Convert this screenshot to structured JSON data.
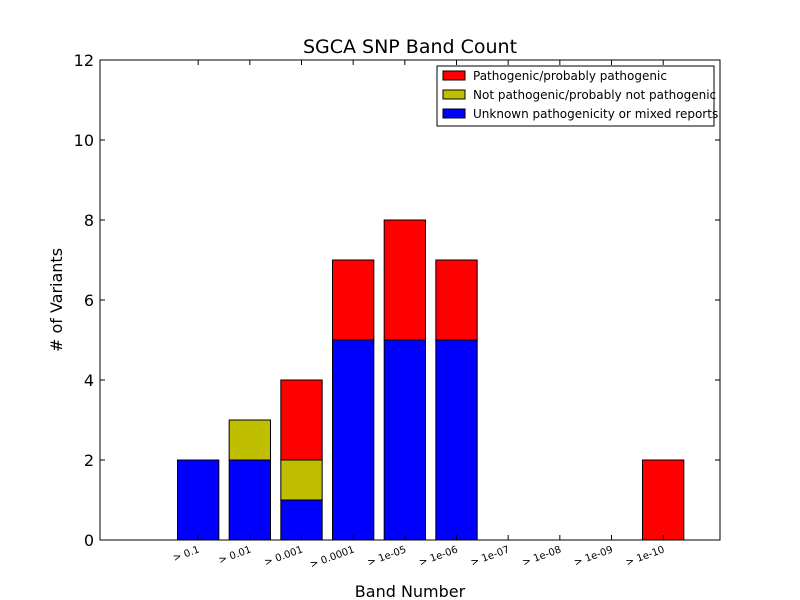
{
  "chart_data": {
    "type": "bar",
    "stacked": true,
    "title": "SGCA SNP Band Count",
    "xlabel": "Band Number",
    "ylabel": "# of Variants",
    "ylim": [
      0,
      12
    ],
    "yticks": [
      0,
      2,
      4,
      6,
      8,
      10,
      12
    ],
    "categories": [
      "> 0.1",
      "> 0.01",
      "> 0.001",
      "> 0.0001",
      "> 1e-05",
      "> 1e-06",
      "> 1e-07",
      "> 1e-08",
      "> 1e-09",
      "> 1e-10"
    ],
    "series": [
      {
        "name": "Unknown pathogenicity or mixed reports",
        "color": "#0000ff",
        "values": [
          2,
          2,
          1,
          5,
          5,
          5,
          0,
          0,
          0,
          0
        ]
      },
      {
        "name": "Not pathogenic/probably not pathogenic",
        "color": "#bfbf00",
        "values": [
          0,
          1,
          1,
          0,
          0,
          0,
          0,
          0,
          0,
          0
        ]
      },
      {
        "name": "Pathogenic/probably pathogenic",
        "color": "#ff0000",
        "values": [
          0,
          0,
          2,
          2,
          3,
          2,
          0,
          0,
          0,
          2
        ]
      }
    ],
    "legend": {
      "position": "top-right",
      "order": [
        "Pathogenic/probably pathogenic",
        "Not pathogenic/probably not pathogenic",
        "Unknown pathogenicity or mixed reports"
      ]
    },
    "grid": false
  }
}
